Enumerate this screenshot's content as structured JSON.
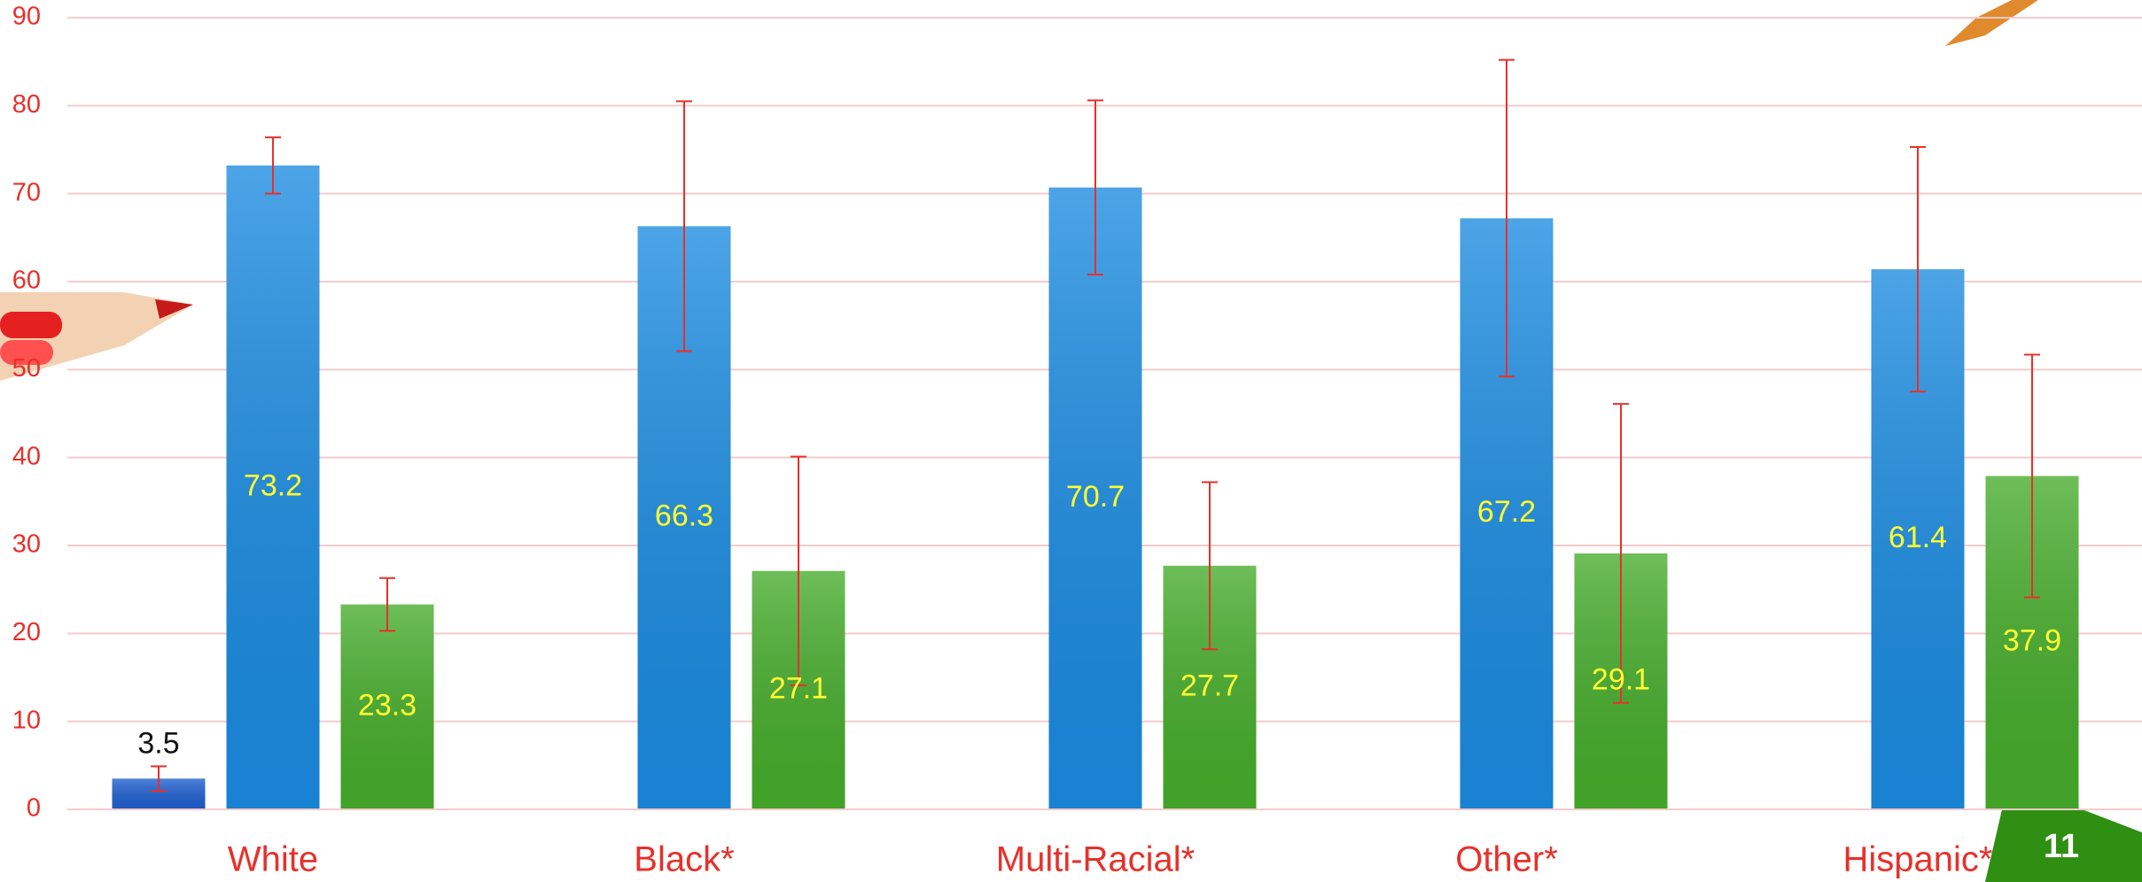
{
  "chart_data": {
    "type": "bar",
    "categories": [
      "White",
      "Black*",
      "Multi-Racial*",
      "Other*",
      "Hispanic*"
    ],
    "series": [
      {
        "color": "#1f5fcf",
        "label_color": "#111111",
        "values": [
          3.5,
          null,
          null,
          null,
          null
        ],
        "errors": [
          1.4,
          null,
          null,
          null,
          null
        ]
      },
      {
        "color": "#1a8be0",
        "label_color": "#ffff33",
        "values": [
          73.2,
          66.3,
          70.7,
          67.2,
          61.4
        ],
        "errors": [
          3.2,
          14.2,
          9.9,
          18,
          13.9
        ]
      },
      {
        "color": "#45ac2a",
        "label_color": "#ffff33",
        "values": [
          23.3,
          27.1,
          27.7,
          29.1,
          37.9
        ],
        "errors": [
          3,
          13,
          9.5,
          17,
          13.8
        ]
      }
    ],
    "ylim": [
      0,
      90
    ],
    "yticks": [
      0,
      10,
      20,
      30,
      40,
      50,
      60,
      70,
      80,
      90
    ],
    "grid": true,
    "page_number": "11"
  }
}
